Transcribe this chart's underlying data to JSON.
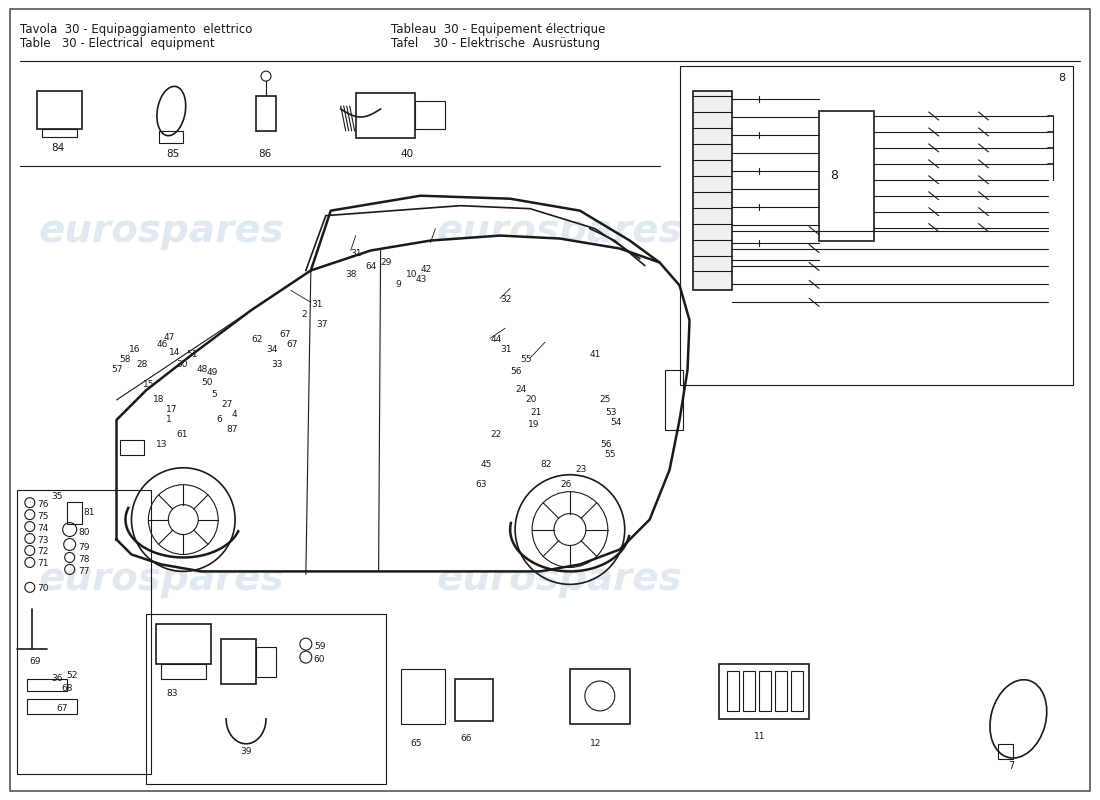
{
  "title_lines": [
    "Tavola  30 - Equipaggiamento  elettrico",
    "Table   30 - Electrical  equipment"
  ],
  "title_lines_right": [
    "Tableau  30 - Equipement électrique",
    "Tafel    30 - Elektrische  Ausrüstung"
  ],
  "bg_color": "#ffffff",
  "fg_color": "#1a1a1a",
  "watermark_color": "#c8d8e8",
  "watermark_text": "eurospares",
  "fig_width": 11.0,
  "fig_height": 8.0,
  "dpi": 100
}
